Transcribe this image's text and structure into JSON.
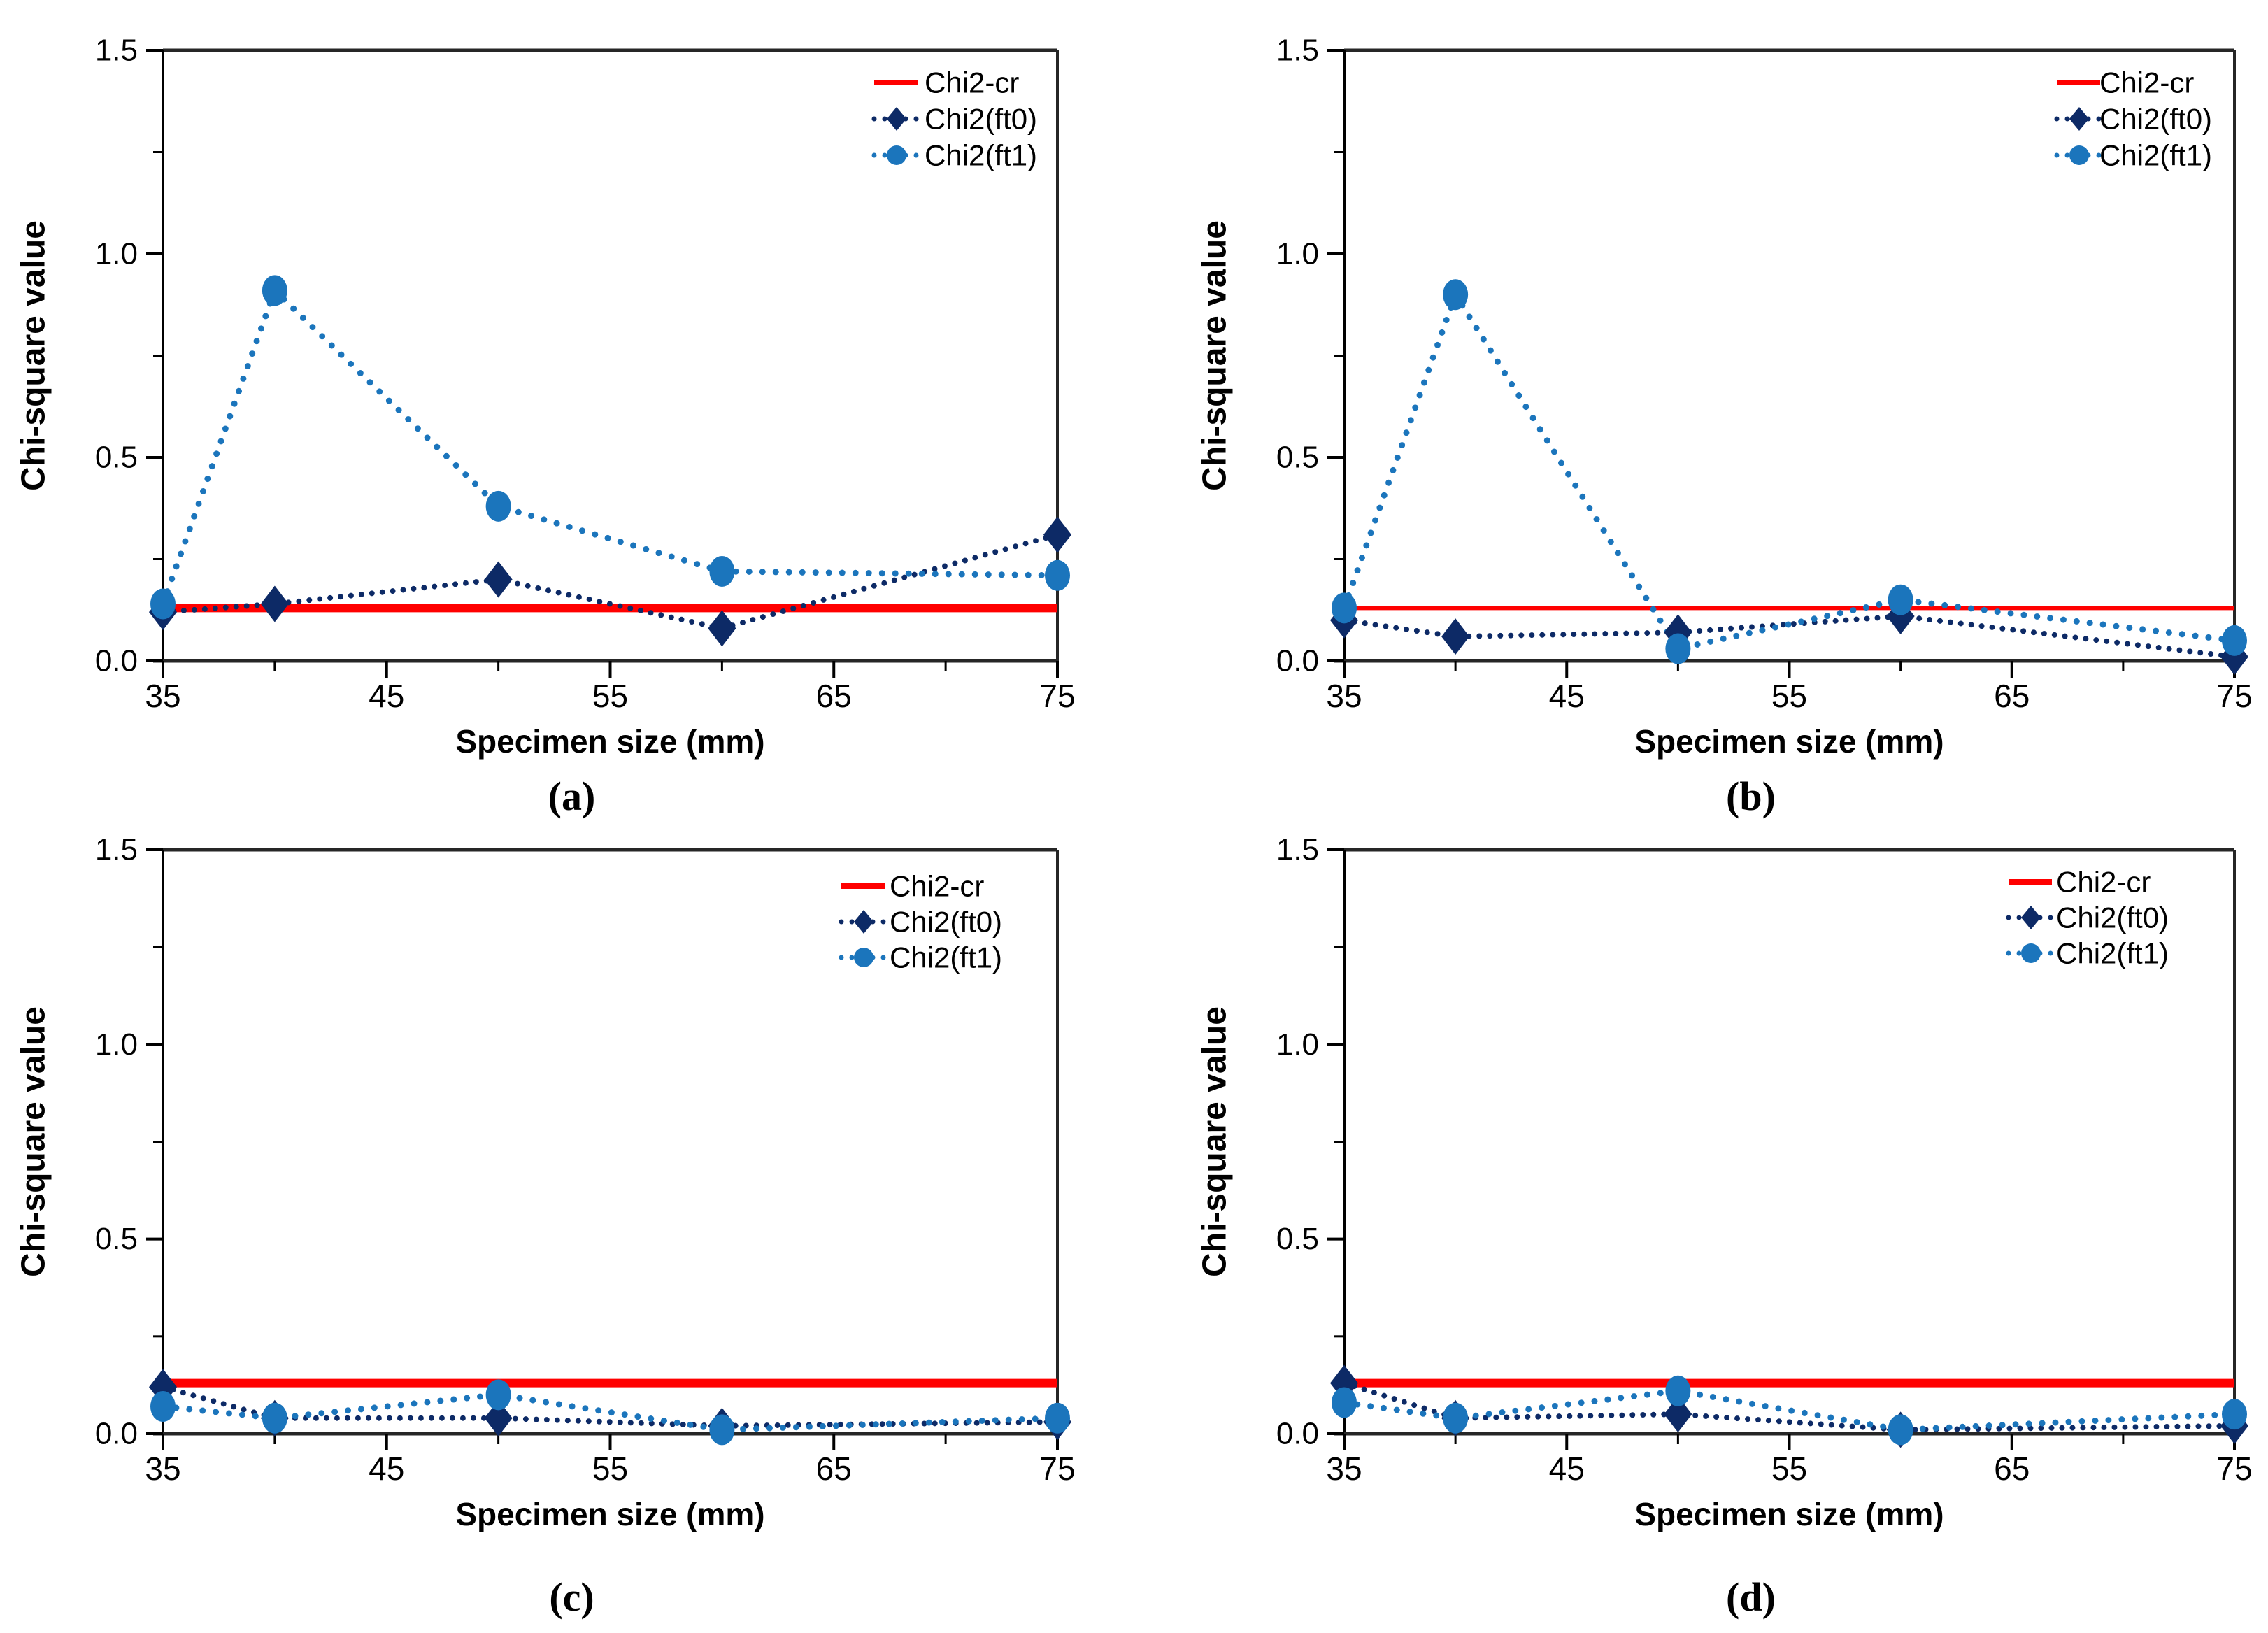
{
  "figure": {
    "background": "#ffffff",
    "ylabel": "Chi-square value",
    "xlabel": "Specimen size (mm)",
    "legend": [
      "Chi2-cr",
      "Chi2(ft0)",
      "Chi2(ft1)"
    ],
    "colors": {
      "cr": "#ff0000",
      "ft0": "#0d2a66",
      "ft1": "#1b75bc",
      "axis": "#262626",
      "text": "#000000"
    }
  },
  "chart_data": [
    {
      "type": "line",
      "panel_label": "(a)",
      "xlabel": "Specimen size (mm)",
      "ylabel": "Chi-square value",
      "x": [
        35,
        40,
        50,
        60,
        75
      ],
      "xlim": [
        35,
        75
      ],
      "ylim": [
        0,
        1.5
      ],
      "x_major_ticks": [
        35,
        45,
        55,
        65,
        75
      ],
      "x_minor_ticks": [
        40,
        50,
        60,
        70
      ],
      "y_major_ticks": [
        0.0,
        0.5,
        1.0,
        1.5
      ],
      "y_minor_ticks": [
        0.25,
        0.75,
        1.25
      ],
      "grid": false,
      "legend_position": "top-right",
      "series": [
        {
          "name": "Chi2-cr",
          "style": "solid-hline",
          "color": "#ff0000",
          "value": 0.13
        },
        {
          "name": "Chi2(ft0)",
          "style": "dotted-diamond",
          "color": "#0d2a66",
          "values": [
            0.12,
            0.14,
            0.2,
            0.08,
            0.31
          ]
        },
        {
          "name": "Chi2(ft1)",
          "style": "dotted-circle",
          "color": "#1b75bc",
          "values": [
            0.14,
            0.91,
            0.38,
            0.22,
            0.21
          ]
        }
      ]
    },
    {
      "type": "line",
      "panel_label": "(b)",
      "xlabel": "Specimen size (mm)",
      "ylabel": "Chi-square value",
      "x": [
        35,
        40,
        50,
        60,
        75
      ],
      "xlim": [
        35,
        75
      ],
      "ylim": [
        0,
        1.5
      ],
      "x_major_ticks": [
        35,
        45,
        55,
        65,
        75
      ],
      "x_minor_ticks": [
        40,
        50,
        60,
        70
      ],
      "y_major_ticks": [
        0.0,
        0.5,
        1.0,
        1.5
      ],
      "y_minor_ticks": [
        0.25,
        0.75,
        1.25
      ],
      "grid": false,
      "legend_position": "top-right",
      "series": [
        {
          "name": "Chi2-cr",
          "style": "solid-hline",
          "color": "#ff0000",
          "value": 0.13
        },
        {
          "name": "Chi2(ft0)",
          "style": "dotted-diamond",
          "color": "#0d2a66",
          "values": [
            0.1,
            0.06,
            0.07,
            0.11,
            0.01
          ]
        },
        {
          "name": "Chi2(ft1)",
          "style": "dotted-circle",
          "color": "#1b75bc",
          "values": [
            0.13,
            0.9,
            0.03,
            0.15,
            0.05
          ]
        }
      ]
    },
    {
      "type": "line",
      "panel_label": "(c)",
      "xlabel": "Specimen size (mm)",
      "ylabel": "Chi-square value",
      "x": [
        35,
        40,
        50,
        60,
        75
      ],
      "xlim": [
        35,
        75
      ],
      "ylim": [
        0,
        1.5
      ],
      "x_major_ticks": [
        35,
        45,
        55,
        65,
        75
      ],
      "x_minor_ticks": [
        40,
        50,
        60,
        70
      ],
      "y_major_ticks": [
        0.0,
        0.5,
        1.0,
        1.5
      ],
      "y_minor_ticks": [
        0.25,
        0.75,
        1.25
      ],
      "grid": false,
      "legend_position": "top-right",
      "series": [
        {
          "name": "Chi2-cr",
          "style": "solid-hline",
          "color": "#ff0000",
          "value": 0.13
        },
        {
          "name": "Chi2(ft0)",
          "style": "dotted-diamond",
          "color": "#0d2a66",
          "values": [
            0.12,
            0.04,
            0.04,
            0.02,
            0.03
          ]
        },
        {
          "name": "Chi2(ft1)",
          "style": "dotted-circle",
          "color": "#1b75bc",
          "values": [
            0.07,
            0.04,
            0.1,
            0.01,
            0.04
          ]
        }
      ]
    },
    {
      "type": "line",
      "panel_label": "(d)",
      "xlabel": "Specimen size (mm)",
      "ylabel": "Chi-square value",
      "x": [
        35,
        40,
        50,
        60,
        75
      ],
      "xlim": [
        35,
        75
      ],
      "ylim": [
        0,
        1.5
      ],
      "x_major_ticks": [
        35,
        45,
        55,
        65,
        75
      ],
      "x_minor_ticks": [
        40,
        50,
        60,
        70
      ],
      "y_major_ticks": [
        0.0,
        0.5,
        1.0,
        1.5
      ],
      "y_minor_ticks": [
        0.25,
        0.75,
        1.25
      ],
      "grid": false,
      "legend_position": "top-right",
      "series": [
        {
          "name": "Chi2-cr",
          "style": "solid-hline",
          "color": "#ff0000",
          "value": 0.13
        },
        {
          "name": "Chi2(ft0)",
          "style": "dotted-diamond",
          "color": "#0d2a66",
          "values": [
            0.13,
            0.04,
            0.05,
            0.01,
            0.02
          ]
        },
        {
          "name": "Chi2(ft1)",
          "style": "dotted-circle",
          "color": "#1b75bc",
          "values": [
            0.08,
            0.04,
            0.11,
            0.01,
            0.05
          ]
        }
      ]
    }
  ]
}
